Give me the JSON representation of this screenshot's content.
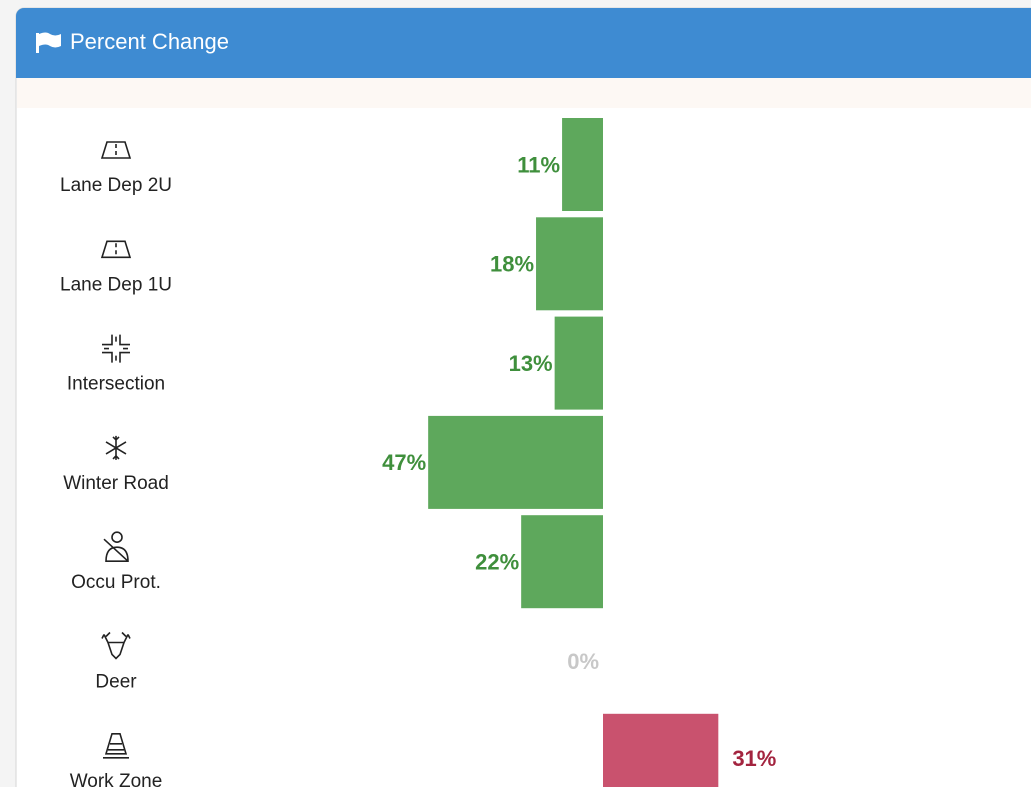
{
  "header": {
    "title": "Percent Change"
  },
  "chart_data": {
    "type": "bar",
    "orientation": "horizontal",
    "categories": [
      "Lane Dep 2U",
      "Lane Dep 1U",
      "Intersection",
      "Winter Road",
      "Occu Prot.",
      "Deer",
      "Work Zone"
    ],
    "values": [
      -11,
      -18,
      -13,
      -47,
      -22,
      0,
      31
    ],
    "value_labels": [
      "11%",
      "18%",
      "13%",
      "47%",
      "22%",
      "0%",
      "31%"
    ],
    "xlim": [
      -100,
      100
    ],
    "colors": {
      "negative": "#5ea85c",
      "positive": "#c9526e",
      "zero": "#c8c8c8"
    },
    "label_colors": {
      "negative": "#3f8f3c",
      "positive": "#a3243f",
      "zero": "#c8c8c8"
    }
  }
}
